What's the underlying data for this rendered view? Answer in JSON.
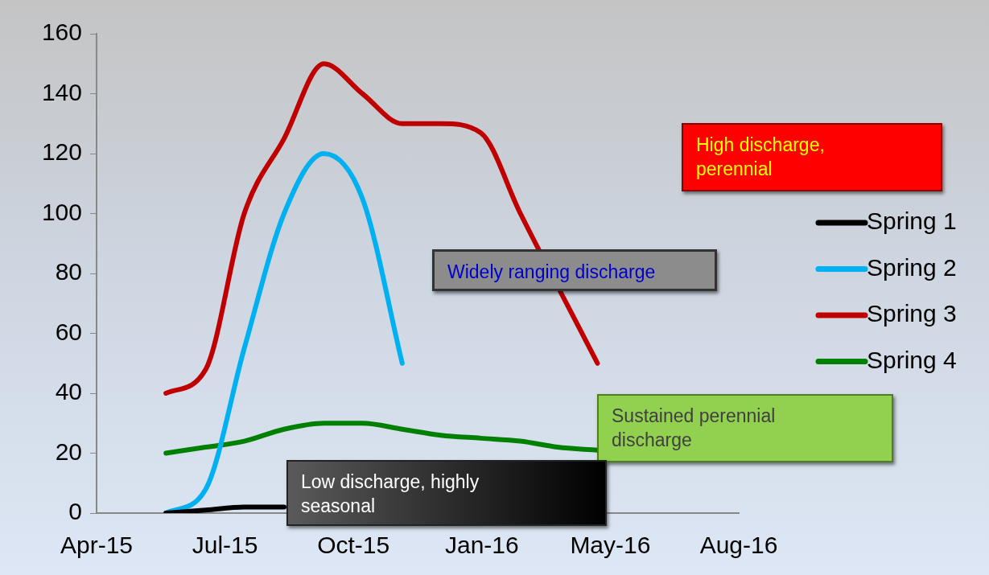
{
  "chart_data": {
    "type": "line",
    "x": [
      "2015-05-25",
      "2015-06-25",
      "2015-07-25",
      "2015-08-25",
      "2015-09-25",
      "2015-10-25",
      "2015-11-25",
      "2015-12-25",
      "2016-01-25",
      "2016-02-25",
      "2016-03-25",
      "2016-04-25"
    ],
    "series": [
      {
        "name": "Spring 1",
        "color": "#000000",
        "values": [
          0,
          1,
          2,
          2,
          null,
          null,
          null,
          null,
          null,
          null,
          null,
          null
        ]
      },
      {
        "name": "Spring 2",
        "color": "#00b0f0",
        "values": [
          0,
          8,
          55,
          100,
          120,
          105,
          50,
          null,
          null,
          null,
          null,
          null
        ]
      },
      {
        "name": "Spring 3",
        "color": "#c00000",
        "values": [
          40,
          48,
          100,
          125,
          150,
          140,
          130,
          130,
          127,
          100,
          null,
          50
        ]
      },
      {
        "name": "Spring 4",
        "color": "#008000",
        "values": [
          20,
          22,
          24,
          28,
          30,
          30,
          28,
          26,
          25,
          24,
          22,
          21
        ]
      }
    ],
    "xlim": [
      "2015-04-01",
      "2016-08-13"
    ],
    "xticks": [
      {
        "value": "2015-04-01",
        "label": "Apr-15"
      },
      {
        "value": "2015-07-10",
        "label": "Jul-15"
      },
      {
        "value": "2015-10-18",
        "label": "Oct-15"
      },
      {
        "value": "2016-01-26",
        "label": "Jan-16"
      },
      {
        "value": "2016-05-05",
        "label": "May-16"
      },
      {
        "value": "2016-08-13",
        "label": "Aug-16"
      }
    ],
    "ylim": [
      0,
      160
    ],
    "yticks": [
      0,
      20,
      40,
      60,
      80,
      100,
      120,
      140,
      160
    ],
    "grid": false,
    "legend": "right",
    "marker": "none",
    "line_style": "solid",
    "annotations": [
      "High discharge, perennial",
      "Widely ranging discharge",
      "Sustained perennial discharge",
      "Low discharge, highly seasonal"
    ]
  }
}
